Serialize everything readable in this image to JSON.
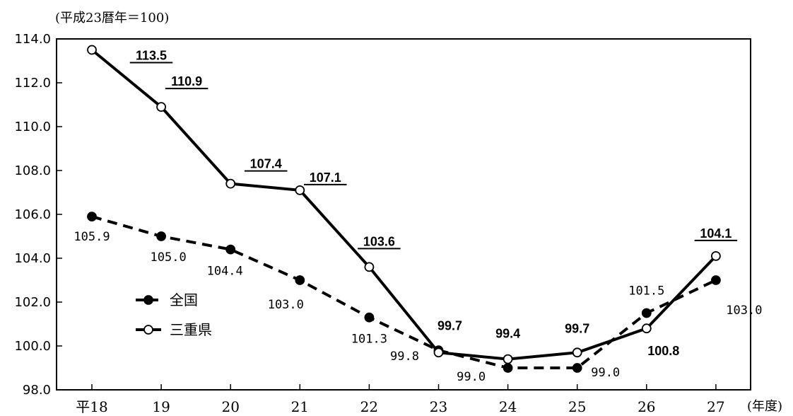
{
  "chart_data": {
    "type": "line",
    "unit_note": "(平成23暦年＝100)",
    "x_unit": "(年度)",
    "categories": [
      "平18",
      "19",
      "20",
      "21",
      "22",
      "23",
      "24",
      "25",
      "26",
      "27"
    ],
    "ylim": [
      98.0,
      114.0
    ],
    "y_ticks": [
      "98.0",
      "100.0",
      "102.0",
      "104.0",
      "106.0",
      "108.0",
      "110.0",
      "112.0",
      "114.0"
    ],
    "legend_position": "left-middle",
    "series": [
      {
        "name": "全国",
        "style": "dashed",
        "marker": "filled-circle",
        "values": [
          105.9,
          105.0,
          104.4,
          103.0,
          101.3,
          99.8,
          99.0,
          99.0,
          101.5,
          103.0
        ],
        "labels": [
          "105.9",
          "105.0",
          "104.4",
          "103.0",
          "101.3",
          "99.8",
          "99.0",
          "99.0",
          "101.5",
          "103.0"
        ]
      },
      {
        "name": "三重県",
        "style": "solid",
        "marker": "open-circle",
        "values": [
          113.5,
          110.9,
          107.4,
          107.1,
          103.6,
          99.7,
          99.4,
          99.7,
          100.8,
          104.1
        ],
        "labels": [
          "113.5",
          "110.9",
          "107.4",
          "107.1",
          "103.6",
          "99.7",
          "99.4",
          "99.7",
          "100.8",
          "104.1"
        ],
        "underlined": [
          true,
          true,
          true,
          true,
          true,
          false,
          false,
          false,
          false,
          true
        ]
      }
    ],
    "grid": false,
    "color": "#000000"
  }
}
